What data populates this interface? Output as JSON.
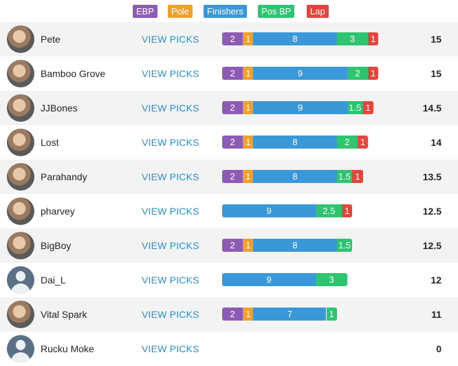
{
  "colors": {
    "ebp": "#8e5bb4",
    "pole": "#efa02d",
    "finishers": "#3a97d8",
    "pos_bp": "#2fc46f",
    "lap": "#e3463d"
  },
  "legend": [
    {
      "key": "ebp",
      "label": "EBP"
    },
    {
      "key": "pole",
      "label": "Pole"
    },
    {
      "key": "finishers",
      "label": "Finishers"
    },
    {
      "key": "pos_bp",
      "label": "Pos BP"
    },
    {
      "key": "lap",
      "label": "Lap"
    }
  ],
  "view_label": "VIEW PICKS",
  "rows": [
    {
      "name": "Pete",
      "avatar": "photo",
      "total": "15",
      "segments": [
        {
          "key": "ebp",
          "value": 2,
          "label": "2"
        },
        {
          "key": "pole",
          "value": 1,
          "label": "1"
        },
        {
          "key": "finishers",
          "value": 8,
          "label": "8"
        },
        {
          "key": "pos_bp",
          "value": 3,
          "label": "3"
        },
        {
          "key": "lap",
          "value": 1,
          "label": "1"
        }
      ]
    },
    {
      "name": "Bamboo Grove",
      "avatar": "photo",
      "total": "15",
      "segments": [
        {
          "key": "ebp",
          "value": 2,
          "label": "2"
        },
        {
          "key": "pole",
          "value": 1,
          "label": "1"
        },
        {
          "key": "finishers",
          "value": 9,
          "label": "9"
        },
        {
          "key": "pos_bp",
          "value": 2,
          "label": "2"
        },
        {
          "key": "lap",
          "value": 1,
          "label": "1"
        }
      ]
    },
    {
      "name": "JJBones",
      "avatar": "photo",
      "total": "14.5",
      "segments": [
        {
          "key": "ebp",
          "value": 2,
          "label": "2"
        },
        {
          "key": "pole",
          "value": 1,
          "label": "1"
        },
        {
          "key": "finishers",
          "value": 9,
          "label": "9"
        },
        {
          "key": "pos_bp",
          "value": 1.5,
          "label": "1.5"
        },
        {
          "key": "lap",
          "value": 1,
          "label": "1"
        }
      ]
    },
    {
      "name": "Lost",
      "avatar": "photo",
      "total": "14",
      "segments": [
        {
          "key": "ebp",
          "value": 2,
          "label": "2"
        },
        {
          "key": "pole",
          "value": 1,
          "label": "1"
        },
        {
          "key": "finishers",
          "value": 8,
          "label": "8"
        },
        {
          "key": "pos_bp",
          "value": 2,
          "label": "2"
        },
        {
          "key": "lap",
          "value": 1,
          "label": "1"
        }
      ]
    },
    {
      "name": "Parahandy",
      "avatar": "photo",
      "total": "13.5",
      "segments": [
        {
          "key": "ebp",
          "value": 2,
          "label": "2"
        },
        {
          "key": "pole",
          "value": 1,
          "label": "1"
        },
        {
          "key": "finishers",
          "value": 8,
          "label": "8"
        },
        {
          "key": "pos_bp",
          "value": 1.5,
          "label": "1.5"
        },
        {
          "key": "lap",
          "value": 1,
          "label": "1"
        }
      ]
    },
    {
      "name": "pharvey",
      "avatar": "photo",
      "total": "12.5",
      "segments": [
        {
          "key": "finishers",
          "value": 9,
          "label": "9"
        },
        {
          "key": "pos_bp",
          "value": 2.5,
          "label": "2.5"
        },
        {
          "key": "lap",
          "value": 1,
          "label": "1"
        }
      ]
    },
    {
      "name": "BigBoy",
      "avatar": "photo",
      "total": "12.5",
      "segments": [
        {
          "key": "ebp",
          "value": 2,
          "label": "2"
        },
        {
          "key": "pole",
          "value": 1,
          "label": "1"
        },
        {
          "key": "finishers",
          "value": 8,
          "label": "8"
        },
        {
          "key": "pos_bp",
          "value": 1.5,
          "label": "1.5"
        }
      ]
    },
    {
      "name": "Dai_L",
      "avatar": "blank",
      "total": "12",
      "segments": [
        {
          "key": "finishers",
          "value": 9,
          "label": "9"
        },
        {
          "key": "pos_bp",
          "value": 3,
          "label": "3"
        }
      ]
    },
    {
      "name": "Vital Spark",
      "avatar": "photo",
      "total": "11",
      "segments": [
        {
          "key": "ebp",
          "value": 2,
          "label": "2"
        },
        {
          "key": "pole",
          "value": 1,
          "label": "1"
        },
        {
          "key": "finishers",
          "value": 7,
          "label": "7"
        },
        {
          "key": "pos_bp",
          "value": 1,
          "label": "1"
        }
      ]
    },
    {
      "name": "Rucku Moke",
      "avatar": "blank",
      "total": "0",
      "segments": []
    }
  ]
}
